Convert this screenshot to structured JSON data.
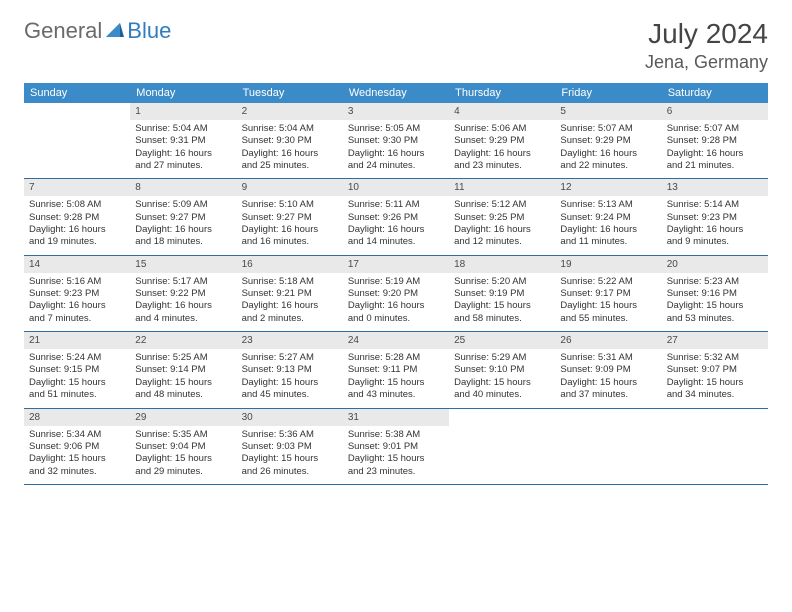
{
  "logo": {
    "text_general": "General",
    "text_blue": "Blue"
  },
  "title": {
    "month": "July 2024",
    "location": "Jena, Germany"
  },
  "colors": {
    "header_bg": "#3b8bc8",
    "header_fg": "#ffffff",
    "row_border": "#2f6da3",
    "daynum_bg": "#e9e9e9",
    "logo_gray": "#6a6a6a",
    "logo_blue": "#2f7dc0"
  },
  "weekdays": [
    "Sunday",
    "Monday",
    "Tuesday",
    "Wednesday",
    "Thursday",
    "Friday",
    "Saturday"
  ],
  "weeks": [
    [
      {
        "empty": true
      },
      {
        "day": "1",
        "sunrise": "Sunrise: 5:04 AM",
        "sunset": "Sunset: 9:31 PM",
        "daylight1": "Daylight: 16 hours",
        "daylight2": "and 27 minutes."
      },
      {
        "day": "2",
        "sunrise": "Sunrise: 5:04 AM",
        "sunset": "Sunset: 9:30 PM",
        "daylight1": "Daylight: 16 hours",
        "daylight2": "and 25 minutes."
      },
      {
        "day": "3",
        "sunrise": "Sunrise: 5:05 AM",
        "sunset": "Sunset: 9:30 PM",
        "daylight1": "Daylight: 16 hours",
        "daylight2": "and 24 minutes."
      },
      {
        "day": "4",
        "sunrise": "Sunrise: 5:06 AM",
        "sunset": "Sunset: 9:29 PM",
        "daylight1": "Daylight: 16 hours",
        "daylight2": "and 23 minutes."
      },
      {
        "day": "5",
        "sunrise": "Sunrise: 5:07 AM",
        "sunset": "Sunset: 9:29 PM",
        "daylight1": "Daylight: 16 hours",
        "daylight2": "and 22 minutes."
      },
      {
        "day": "6",
        "sunrise": "Sunrise: 5:07 AM",
        "sunset": "Sunset: 9:28 PM",
        "daylight1": "Daylight: 16 hours",
        "daylight2": "and 21 minutes."
      }
    ],
    [
      {
        "day": "7",
        "sunrise": "Sunrise: 5:08 AM",
        "sunset": "Sunset: 9:28 PM",
        "daylight1": "Daylight: 16 hours",
        "daylight2": "and 19 minutes."
      },
      {
        "day": "8",
        "sunrise": "Sunrise: 5:09 AM",
        "sunset": "Sunset: 9:27 PM",
        "daylight1": "Daylight: 16 hours",
        "daylight2": "and 18 minutes."
      },
      {
        "day": "9",
        "sunrise": "Sunrise: 5:10 AM",
        "sunset": "Sunset: 9:27 PM",
        "daylight1": "Daylight: 16 hours",
        "daylight2": "and 16 minutes."
      },
      {
        "day": "10",
        "sunrise": "Sunrise: 5:11 AM",
        "sunset": "Sunset: 9:26 PM",
        "daylight1": "Daylight: 16 hours",
        "daylight2": "and 14 minutes."
      },
      {
        "day": "11",
        "sunrise": "Sunrise: 5:12 AM",
        "sunset": "Sunset: 9:25 PM",
        "daylight1": "Daylight: 16 hours",
        "daylight2": "and 12 minutes."
      },
      {
        "day": "12",
        "sunrise": "Sunrise: 5:13 AM",
        "sunset": "Sunset: 9:24 PM",
        "daylight1": "Daylight: 16 hours",
        "daylight2": "and 11 minutes."
      },
      {
        "day": "13",
        "sunrise": "Sunrise: 5:14 AM",
        "sunset": "Sunset: 9:23 PM",
        "daylight1": "Daylight: 16 hours",
        "daylight2": "and 9 minutes."
      }
    ],
    [
      {
        "day": "14",
        "sunrise": "Sunrise: 5:16 AM",
        "sunset": "Sunset: 9:23 PM",
        "daylight1": "Daylight: 16 hours",
        "daylight2": "and 7 minutes."
      },
      {
        "day": "15",
        "sunrise": "Sunrise: 5:17 AM",
        "sunset": "Sunset: 9:22 PM",
        "daylight1": "Daylight: 16 hours",
        "daylight2": "and 4 minutes."
      },
      {
        "day": "16",
        "sunrise": "Sunrise: 5:18 AM",
        "sunset": "Sunset: 9:21 PM",
        "daylight1": "Daylight: 16 hours",
        "daylight2": "and 2 minutes."
      },
      {
        "day": "17",
        "sunrise": "Sunrise: 5:19 AM",
        "sunset": "Sunset: 9:20 PM",
        "daylight1": "Daylight: 16 hours",
        "daylight2": "and 0 minutes."
      },
      {
        "day": "18",
        "sunrise": "Sunrise: 5:20 AM",
        "sunset": "Sunset: 9:19 PM",
        "daylight1": "Daylight: 15 hours",
        "daylight2": "and 58 minutes."
      },
      {
        "day": "19",
        "sunrise": "Sunrise: 5:22 AM",
        "sunset": "Sunset: 9:17 PM",
        "daylight1": "Daylight: 15 hours",
        "daylight2": "and 55 minutes."
      },
      {
        "day": "20",
        "sunrise": "Sunrise: 5:23 AM",
        "sunset": "Sunset: 9:16 PM",
        "daylight1": "Daylight: 15 hours",
        "daylight2": "and 53 minutes."
      }
    ],
    [
      {
        "day": "21",
        "sunrise": "Sunrise: 5:24 AM",
        "sunset": "Sunset: 9:15 PM",
        "daylight1": "Daylight: 15 hours",
        "daylight2": "and 51 minutes."
      },
      {
        "day": "22",
        "sunrise": "Sunrise: 5:25 AM",
        "sunset": "Sunset: 9:14 PM",
        "daylight1": "Daylight: 15 hours",
        "daylight2": "and 48 minutes."
      },
      {
        "day": "23",
        "sunrise": "Sunrise: 5:27 AM",
        "sunset": "Sunset: 9:13 PM",
        "daylight1": "Daylight: 15 hours",
        "daylight2": "and 45 minutes."
      },
      {
        "day": "24",
        "sunrise": "Sunrise: 5:28 AM",
        "sunset": "Sunset: 9:11 PM",
        "daylight1": "Daylight: 15 hours",
        "daylight2": "and 43 minutes."
      },
      {
        "day": "25",
        "sunrise": "Sunrise: 5:29 AM",
        "sunset": "Sunset: 9:10 PM",
        "daylight1": "Daylight: 15 hours",
        "daylight2": "and 40 minutes."
      },
      {
        "day": "26",
        "sunrise": "Sunrise: 5:31 AM",
        "sunset": "Sunset: 9:09 PM",
        "daylight1": "Daylight: 15 hours",
        "daylight2": "and 37 minutes."
      },
      {
        "day": "27",
        "sunrise": "Sunrise: 5:32 AM",
        "sunset": "Sunset: 9:07 PM",
        "daylight1": "Daylight: 15 hours",
        "daylight2": "and 34 minutes."
      }
    ],
    [
      {
        "day": "28",
        "sunrise": "Sunrise: 5:34 AM",
        "sunset": "Sunset: 9:06 PM",
        "daylight1": "Daylight: 15 hours",
        "daylight2": "and 32 minutes."
      },
      {
        "day": "29",
        "sunrise": "Sunrise: 5:35 AM",
        "sunset": "Sunset: 9:04 PM",
        "daylight1": "Daylight: 15 hours",
        "daylight2": "and 29 minutes."
      },
      {
        "day": "30",
        "sunrise": "Sunrise: 5:36 AM",
        "sunset": "Sunset: 9:03 PM",
        "daylight1": "Daylight: 15 hours",
        "daylight2": "and 26 minutes."
      },
      {
        "day": "31",
        "sunrise": "Sunrise: 5:38 AM",
        "sunset": "Sunset: 9:01 PM",
        "daylight1": "Daylight: 15 hours",
        "daylight2": "and 23 minutes."
      },
      {
        "empty": true
      },
      {
        "empty": true
      },
      {
        "empty": true
      }
    ]
  ]
}
